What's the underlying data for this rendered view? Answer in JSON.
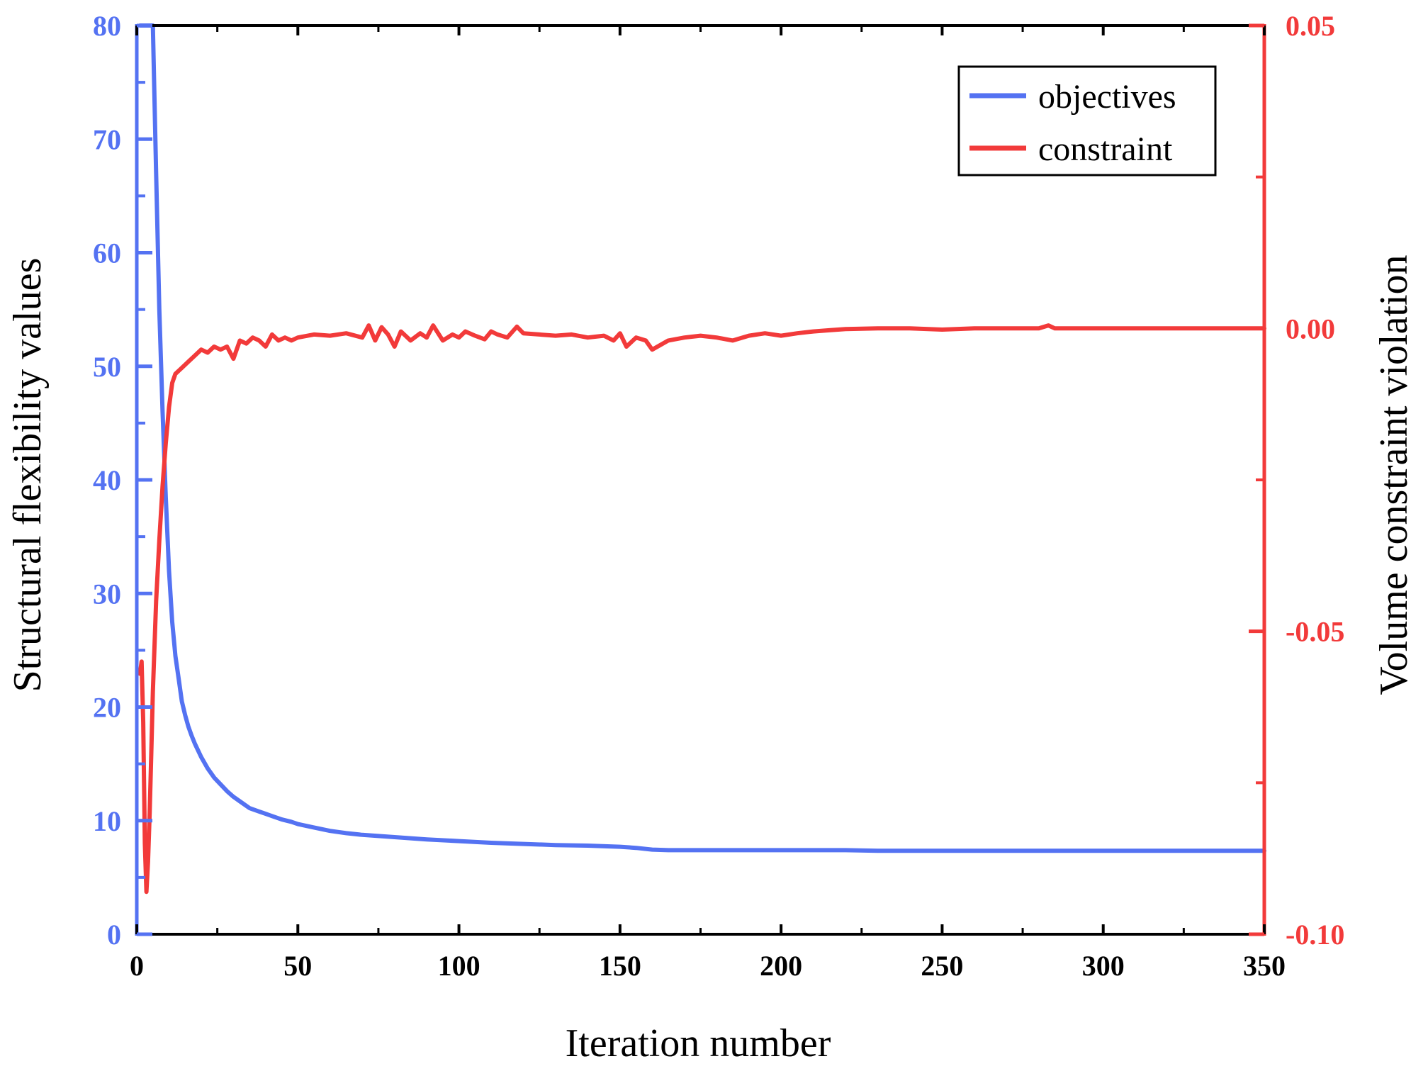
{
  "chart_data": {
    "type": "line",
    "dual_axis": true,
    "title": "",
    "xlabel": "Iteration number",
    "ylabel_left": "Structural flexibility values",
    "ylabel_right": "Volume constraint violation",
    "xlim": [
      0,
      350
    ],
    "ylim_left": [
      0,
      80
    ],
    "ylim_right": [
      -0.1,
      0.05
    ],
    "x_ticks": [
      "0",
      "50",
      "100",
      "150",
      "200",
      "250",
      "300",
      "350"
    ],
    "y_left_ticks": [
      "0",
      "10",
      "20",
      "30",
      "40",
      "50",
      "60",
      "70",
      "80"
    ],
    "y_right_ticks": [
      "-0.10",
      "-0.05",
      "0.00",
      "0.05"
    ],
    "grid": false,
    "legend": {
      "position": "top-right",
      "entries": [
        "objectives",
        "constraint"
      ]
    },
    "colors": {
      "objectives": "#5472f2",
      "constraint": "#f23a3a",
      "frame": "#000000"
    },
    "series": [
      {
        "name": "objectives",
        "axis": "left",
        "color": "#5472f2",
        "x": [
          1,
          2,
          3,
          4,
          5,
          6,
          7,
          8,
          9,
          10,
          11,
          12,
          13,
          14,
          15,
          16,
          17,
          18,
          20,
          22,
          24,
          26,
          28,
          30,
          32,
          35,
          38,
          40,
          42,
          45,
          48,
          50,
          55,
          60,
          65,
          70,
          75,
          80,
          85,
          90,
          100,
          110,
          120,
          130,
          140,
          150,
          155,
          160,
          165,
          170,
          180,
          190,
          200,
          210,
          220,
          230,
          240,
          250,
          260,
          270,
          280,
          290,
          300,
          310,
          320,
          330,
          340,
          350
        ],
        "y": [
          80,
          80,
          80,
          80,
          80,
          67,
          55,
          46,
          38.5,
          32,
          27.5,
          24.5,
          22.5,
          20.5,
          19.3,
          18.3,
          17.5,
          16.8,
          15.6,
          14.6,
          13.8,
          13.2,
          12.6,
          12.1,
          11.7,
          11.1,
          10.8,
          10.6,
          10.4,
          10.1,
          9.9,
          9.7,
          9.4,
          9.1,
          8.9,
          8.75,
          8.65,
          8.55,
          8.45,
          8.35,
          8.2,
          8.05,
          7.95,
          7.85,
          7.8,
          7.7,
          7.6,
          7.45,
          7.4,
          7.4,
          7.4,
          7.4,
          7.4,
          7.4,
          7.4,
          7.35,
          7.35,
          7.35,
          7.35,
          7.35,
          7.35,
          7.35,
          7.35,
          7.35,
          7.35,
          7.35,
          7.35,
          7.35
        ]
      },
      {
        "name": "constraint",
        "axis": "right",
        "color": "#f23a3a",
        "x": [
          1,
          1.5,
          2,
          2.5,
          3,
          3.5,
          4,
          4.5,
          5,
          6,
          7,
          8,
          9,
          10,
          11,
          12,
          14,
          16,
          18,
          20,
          22,
          24,
          26,
          28,
          30,
          32,
          34,
          36,
          38,
          40,
          42,
          44,
          46,
          48,
          50,
          55,
          60,
          65,
          70,
          72,
          74,
          76,
          78,
          80,
          82,
          85,
          88,
          90,
          92,
          95,
          98,
          100,
          102,
          105,
          108,
          110,
          112,
          115,
          118,
          120,
          125,
          130,
          135,
          140,
          145,
          148,
          150,
          152,
          155,
          158,
          160,
          165,
          170,
          175,
          180,
          185,
          190,
          195,
          200,
          205,
          210,
          215,
          220,
          230,
          240,
          250,
          260,
          270,
          280,
          283,
          285,
          290,
          300,
          310,
          320,
          330,
          340,
          350
        ],
        "y": [
          -0.057,
          -0.055,
          -0.065,
          -0.085,
          -0.093,
          -0.088,
          -0.08,
          -0.07,
          -0.06,
          -0.045,
          -0.035,
          -0.026,
          -0.019,
          -0.013,
          -0.009,
          -0.0075,
          -0.0065,
          -0.0055,
          -0.0045,
          -0.0035,
          -0.004,
          -0.003,
          -0.0035,
          -0.003,
          -0.005,
          -0.002,
          -0.0025,
          -0.0015,
          -0.002,
          -0.003,
          -0.001,
          -0.002,
          -0.0015,
          -0.002,
          -0.0015,
          -0.001,
          -0.0012,
          -0.0008,
          -0.0015,
          0.0005,
          -0.002,
          0.0002,
          -0.001,
          -0.003,
          -0.0005,
          -0.002,
          -0.0008,
          -0.0015,
          0.0005,
          -0.002,
          -0.001,
          -0.0015,
          -0.0005,
          -0.0012,
          -0.0018,
          -0.0005,
          -0.001,
          -0.0015,
          0.0003,
          -0.0008,
          -0.001,
          -0.0012,
          -0.001,
          -0.0015,
          -0.0012,
          -0.002,
          -0.0008,
          -0.003,
          -0.0015,
          -0.002,
          -0.0035,
          -0.002,
          -0.0015,
          -0.0012,
          -0.0015,
          -0.002,
          -0.0012,
          -0.0008,
          -0.0012,
          -0.0008,
          -0.0005,
          -0.0003,
          -0.0001,
          0.0,
          0.0,
          -0.0002,
          0.0,
          0.0,
          0.0,
          0.0005,
          0.0,
          0.0,
          0.0,
          0.0,
          0.0,
          0.0,
          0.0,
          0.0
        ]
      }
    ]
  }
}
